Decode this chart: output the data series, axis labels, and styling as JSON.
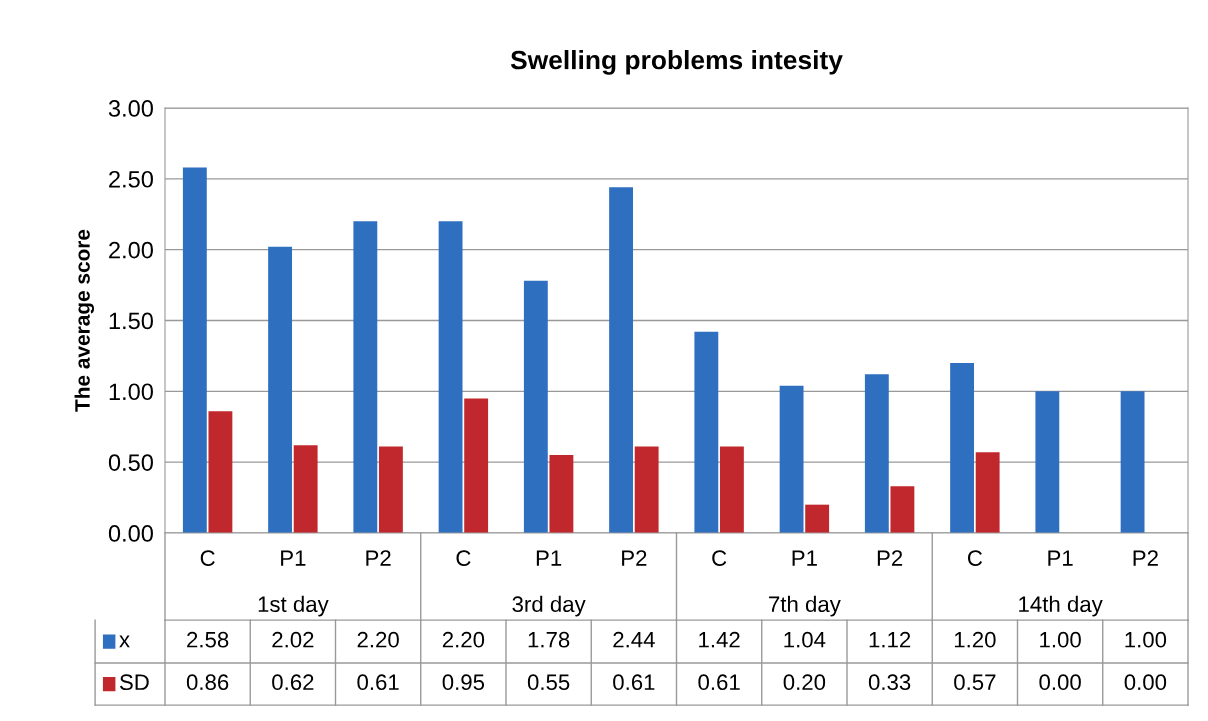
{
  "chart_data": {
    "type": "bar",
    "title": "Swelling problems intesity",
    "ylabel": "The average score",
    "categories": [
      "C",
      "P1",
      "P2",
      "C",
      "P1",
      "P2",
      "C",
      "P1",
      "P2",
      "C",
      "P1",
      "P2"
    ],
    "annotations": [
      "1st day",
      "3rd day",
      "7th day",
      "14th day"
    ],
    "series": [
      {
        "name": "x",
        "color": "#2e6fc0",
        "values": [
          2.58,
          2.02,
          2.2,
          2.2,
          1.78,
          2.44,
          1.42,
          1.04,
          1.12,
          1.2,
          1.0,
          1.0
        ],
        "value_labels": [
          "2.58",
          "2.02",
          "2.20",
          "2.20",
          "1.78",
          "2.44",
          "1.42",
          "1.04",
          "1.12",
          "1.20",
          "1.00",
          "1.00"
        ]
      },
      {
        "name": "SD",
        "color": "#c0282d",
        "values": [
          0.86,
          0.62,
          0.61,
          0.95,
          0.55,
          0.61,
          0.61,
          0.2,
          0.33,
          0.57,
          0.0,
          0.0
        ],
        "value_labels": [
          "0.86",
          "0.62",
          "0.61",
          "0.95",
          "0.55",
          "0.61",
          "0.61",
          "0.20",
          "0.33",
          "0.57",
          "0.00",
          "0.00"
        ]
      }
    ],
    "ylim": [
      0,
      3
    ],
    "yticks": [
      {
        "value": 0,
        "label": "0.00"
      },
      {
        "value": 0.5,
        "label": "0.50"
      },
      {
        "value": 1,
        "label": "1.00"
      },
      {
        "value": 1.5,
        "label": "1.50"
      },
      {
        "value": 2,
        "label": "2.00"
      },
      {
        "value": 2.5,
        "label": "2.50"
      },
      {
        "value": 3,
        "label": "3.00"
      }
    ],
    "grid": "y",
    "legend": "bottom"
  }
}
